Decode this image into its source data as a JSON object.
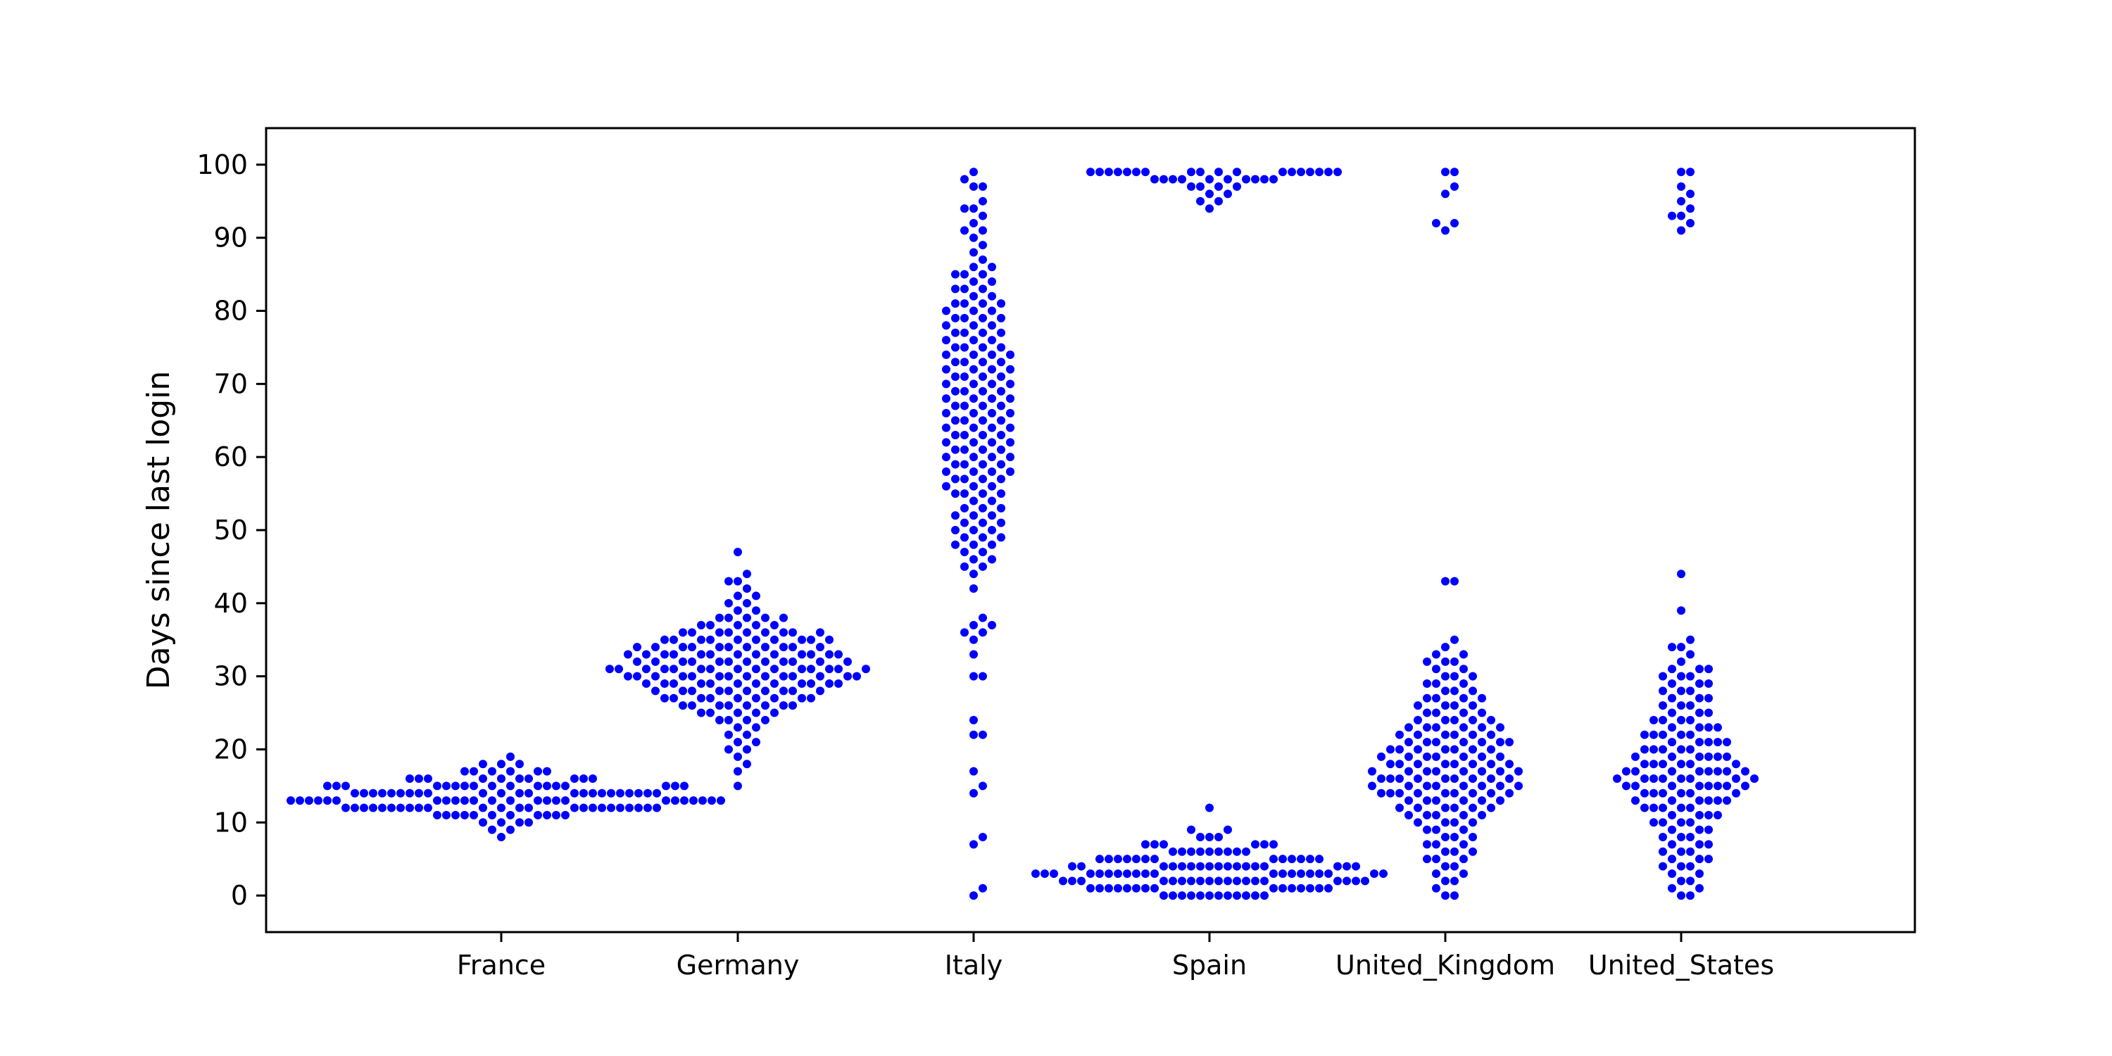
{
  "chart_data": {
    "type": "scatter",
    "title": "",
    "xlabel": "",
    "ylabel": "Days since last login",
    "categories": [
      "France",
      "Germany",
      "Italy",
      "Spain",
      "United_Kingdom",
      "United_States"
    ],
    "ylim": [
      -5,
      105
    ],
    "yticks": [
      0,
      10,
      20,
      30,
      40,
      50,
      60,
      70,
      80,
      90,
      100
    ],
    "grid": false,
    "legend": "none",
    "marker_color": "#0000ff",
    "series": [
      {
        "category": "France",
        "values": [
          12,
          10,
          11,
          11,
          12,
          12,
          12,
          13,
          13,
          13,
          14,
          14,
          14,
          15,
          15,
          15,
          16,
          16,
          17,
          17,
          18,
          19,
          12,
          13,
          14,
          11,
          12,
          13,
          14,
          15,
          16,
          12,
          13,
          14,
          15,
          11,
          12,
          13,
          14,
          15,
          16,
          17,
          10,
          11,
          12,
          13,
          14,
          15,
          9,
          8,
          12,
          13,
          14,
          15,
          16,
          17,
          18,
          11,
          12,
          13,
          14,
          15,
          12,
          13,
          14,
          12,
          13,
          14,
          15,
          16,
          11,
          12,
          13,
          14,
          13,
          12,
          14,
          15,
          16,
          17,
          9,
          10,
          11,
          12,
          13,
          14,
          15,
          12,
          13,
          14,
          11,
          12,
          13,
          14,
          15,
          16,
          13,
          14,
          15,
          12,
          13,
          14,
          12,
          13,
          14,
          15,
          14,
          13,
          12,
          11,
          15,
          16,
          14,
          13,
          12,
          11,
          10,
          12,
          13,
          14,
          15,
          16,
          17,
          18,
          12,
          13
        ]
      },
      {
        "category": "Germany",
        "values": [
          44,
          15,
          18,
          19,
          20,
          21,
          22,
          24,
          25,
          26,
          26,
          27,
          27,
          28,
          28,
          29,
          29,
          29,
          30,
          30,
          30,
          30,
          31,
          31,
          31,
          31,
          32,
          32,
          32,
          33,
          33,
          33,
          34,
          34,
          34,
          35,
          35,
          35,
          36,
          36,
          36,
          37,
          37,
          38,
          38,
          39,
          40,
          41,
          42,
          43,
          43,
          47,
          17,
          23,
          24,
          25,
          26,
          27,
          28,
          29,
          30,
          31,
          32,
          33,
          34,
          35,
          36,
          37,
          38,
          39,
          40,
          41,
          20,
          21,
          22,
          23,
          24,
          25,
          26,
          27,
          28,
          29,
          30,
          31,
          32,
          33,
          34,
          35,
          36,
          37,
          38,
          25,
          26,
          27,
          28,
          29,
          30,
          31,
          32,
          33,
          34,
          35,
          36,
          24,
          25,
          26,
          27,
          28,
          29,
          30,
          31,
          32,
          33,
          34,
          28,
          29,
          30,
          31,
          32,
          33,
          34,
          35,
          26,
          27,
          28,
          29,
          30,
          31,
          32,
          33,
          29,
          30,
          31,
          32,
          30,
          31,
          33,
          34,
          35,
          36,
          37,
          26,
          27,
          28,
          30,
          31,
          32,
          33,
          34,
          35,
          36,
          29,
          31,
          33,
          35,
          27,
          29,
          31,
          33,
          28,
          30,
          32,
          34,
          36,
          38
        ]
      },
      {
        "category": "Italy",
        "values": [
          99,
          0,
          1,
          7,
          8,
          14,
          15,
          17,
          22,
          22,
          24,
          30,
          30,
          33,
          35,
          36,
          36,
          37,
          37,
          38,
          42,
          44,
          45,
          46,
          46,
          47,
          48,
          48,
          49,
          49,
          50,
          50,
          51,
          51,
          52,
          52,
          53,
          53,
          54,
          54,
          55,
          55,
          56,
          56,
          57,
          57,
          58,
          58,
          59,
          59,
          60,
          60,
          61,
          61,
          62,
          62,
          63,
          63,
          64,
          64,
          65,
          65,
          66,
          66,
          67,
          67,
          68,
          68,
          69,
          69,
          70,
          70,
          71,
          71,
          72,
          72,
          73,
          73,
          74,
          74,
          75,
          75,
          76,
          76,
          77,
          77,
          78,
          78,
          79,
          79,
          80,
          80,
          81,
          81,
          82,
          82,
          83,
          83,
          84,
          84,
          85,
          85,
          86,
          86,
          87,
          88,
          89,
          90,
          91,
          91,
          92,
          93,
          94,
          94,
          95,
          97,
          97,
          98,
          48,
          50,
          52,
          55,
          57,
          59,
          61,
          63,
          65,
          67,
          69,
          71,
          73,
          75,
          77,
          79,
          81,
          83,
          85,
          58,
          60,
          62,
          64,
          66,
          68,
          70,
          72,
          74,
          76,
          78,
          80,
          45,
          47,
          49,
          51,
          53,
          55,
          57,
          59,
          61,
          63,
          65,
          67,
          69,
          71,
          73,
          75,
          77,
          79,
          81,
          56,
          58,
          60,
          62,
          64,
          66,
          68,
          70,
          72,
          74
        ]
      },
      {
        "category": "Spain",
        "values": [
          0,
          0,
          0,
          0,
          0,
          0,
          0,
          0,
          0,
          0,
          1,
          1,
          1,
          1,
          1,
          1,
          1,
          1,
          1,
          1,
          1,
          1,
          2,
          2,
          2,
          2,
          2,
          2,
          2,
          2,
          2,
          2,
          2,
          2,
          2,
          2,
          3,
          3,
          3,
          3,
          3,
          3,
          3,
          3,
          3,
          3,
          3,
          3,
          3,
          3,
          4,
          4,
          4,
          4,
          4,
          4,
          4,
          4,
          4,
          4,
          4,
          4,
          5,
          5,
          5,
          5,
          5,
          5,
          5,
          5,
          5,
          5,
          6,
          6,
          6,
          6,
          6,
          6,
          6,
          7,
          7,
          7,
          7,
          7,
          8,
          8,
          8,
          9,
          9,
          12,
          0,
          1,
          2,
          3,
          4,
          5,
          6,
          7,
          0,
          1,
          2,
          3,
          4,
          5,
          6,
          2,
          3,
          4,
          5,
          1,
          2,
          3,
          4,
          3,
          4,
          2,
          3,
          99,
          99,
          99,
          99,
          99,
          99,
          99,
          99,
          99,
          99,
          99,
          99,
          99,
          99,
          99,
          99,
          99,
          99,
          98,
          98,
          98,
          98,
          98,
          98,
          98,
          98,
          98,
          98,
          97,
          97,
          97,
          97,
          96,
          96,
          95,
          95,
          94
        ]
      },
      {
        "category": "United_Kingdom",
        "values": [
          0,
          0,
          1,
          2,
          3,
          4,
          5,
          5,
          6,
          6,
          7,
          7,
          8,
          8,
          9,
          9,
          10,
          10,
          11,
          11,
          11,
          12,
          12,
          12,
          13,
          13,
          13,
          14,
          14,
          14,
          14,
          15,
          15,
          15,
          15,
          16,
          16,
          16,
          16,
          17,
          17,
          17,
          17,
          18,
          18,
          18,
          19,
          19,
          19,
          20,
          20,
          20,
          21,
          21,
          21,
          22,
          22,
          22,
          23,
          23,
          23,
          24,
          24,
          25,
          25,
          26,
          26,
          27,
          27,
          28,
          28,
          29,
          29,
          30,
          30,
          31,
          31,
          32,
          32,
          33,
          33,
          34,
          35,
          43,
          43,
          91,
          92,
          92,
          96,
          97,
          99,
          99,
          2,
          4,
          6,
          8,
          10,
          12,
          14,
          16,
          18,
          20,
          22,
          24,
          26,
          28,
          30,
          32,
          3,
          5,
          7,
          9,
          11,
          13,
          15,
          17,
          19,
          21,
          23,
          25,
          27,
          29,
          13,
          14,
          15,
          16,
          17,
          18,
          19,
          20,
          21,
          22,
          23,
          24,
          10,
          12,
          14,
          16,
          18,
          20,
          22,
          24,
          26,
          11,
          13,
          15,
          17,
          19,
          21,
          23,
          25,
          27,
          14,
          16,
          18,
          20,
          15,
          17,
          19,
          21,
          12,
          14,
          16,
          18
        ]
      },
      {
        "category": "United_States",
        "values": [
          0,
          0,
          1,
          1,
          2,
          3,
          3,
          4,
          4,
          5,
          5,
          6,
          6,
          7,
          7,
          8,
          8,
          9,
          9,
          10,
          10,
          11,
          11,
          12,
          12,
          13,
          13,
          14,
          14,
          15,
          15,
          15,
          16,
          16,
          16,
          17,
          17,
          17,
          18,
          18,
          19,
          19,
          20,
          20,
          21,
          21,
          22,
          22,
          23,
          23,
          24,
          24,
          25,
          25,
          26,
          26,
          27,
          27,
          28,
          28,
          29,
          29,
          30,
          30,
          31,
          31,
          32,
          33,
          34,
          34,
          35,
          39,
          44,
          91,
          92,
          93,
          93,
          94,
          95,
          96,
          97,
          99,
          99,
          2,
          4,
          6,
          8,
          10,
          12,
          14,
          16,
          18,
          20,
          22,
          24,
          26,
          28,
          30,
          5,
          7,
          9,
          11,
          13,
          15,
          17,
          19,
          21,
          23,
          25,
          27,
          29,
          31,
          12,
          13,
          14,
          15,
          16,
          17,
          18,
          19,
          20,
          21,
          22,
          10,
          12,
          14,
          16,
          18,
          20,
          22,
          24,
          11,
          13,
          15,
          17,
          19,
          21,
          23,
          14,
          15,
          16,
          17,
          18,
          13,
          15,
          17,
          19,
          16
        ]
      }
    ]
  }
}
